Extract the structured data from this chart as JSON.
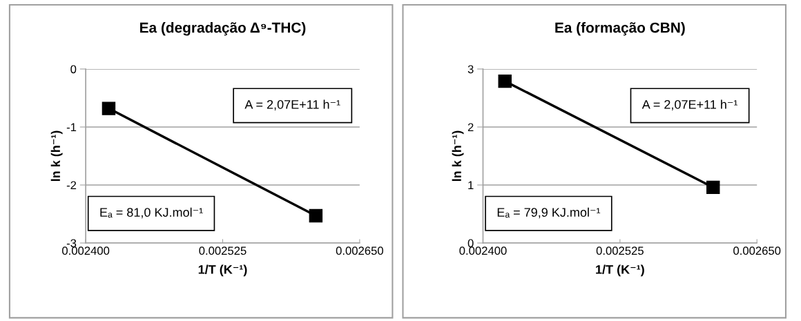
{
  "chart_data": [
    {
      "type": "line",
      "title": "Ea (degradação Δ⁹-THC)",
      "xlabel": "1/T (K⁻¹)",
      "ylabel": "ln k (h⁻¹)",
      "x": [
        0.002421,
        0.00261
      ],
      "series": [
        {
          "color": "#000000",
          "values": [
            -0.68,
            -2.53
          ]
        }
      ],
      "xlim": [
        0.0024,
        0.00265
      ],
      "ylim": [
        -3,
        0
      ],
      "xticks": [
        {
          "value": 0.0024,
          "label": "0.002400"
        },
        {
          "value": 0.002525,
          "label": "0.002525"
        },
        {
          "value": 0.00265,
          "label": "0.002650"
        }
      ],
      "yticks": [
        -3,
        -2,
        -1,
        0
      ],
      "grid": "y",
      "marker": "square",
      "line_style": "solid",
      "legend": false,
      "annotations": [
        "A = 2,07E+11 h⁻¹",
        "Eₐ = 81,0 KJ.mol⁻¹"
      ]
    },
    {
      "type": "line",
      "title": "Ea (formação CBN)",
      "xlabel": "1/T (K⁻¹)",
      "ylabel": "ln k (h⁻¹)",
      "x": [
        0.00242,
        0.00261
      ],
      "series": [
        {
          "color": "#000000",
          "values": [
            2.79,
            0.96
          ]
        }
      ],
      "xlim": [
        0.0024,
        0.00265
      ],
      "ylim": [
        0,
        3
      ],
      "xticks": [
        {
          "value": 0.0024,
          "label": "0.002400"
        },
        {
          "value": 0.002525,
          "label": "0.002525"
        },
        {
          "value": 0.00265,
          "label": "0.002650"
        }
      ],
      "yticks": [
        0,
        1,
        2,
        3
      ],
      "grid": "y",
      "marker": "square",
      "line_style": "solid",
      "legend": false,
      "annotations": [
        "A = 2,07E+11 h⁻¹",
        "Eₐ = 79,9 KJ.mol⁻¹"
      ]
    }
  ]
}
